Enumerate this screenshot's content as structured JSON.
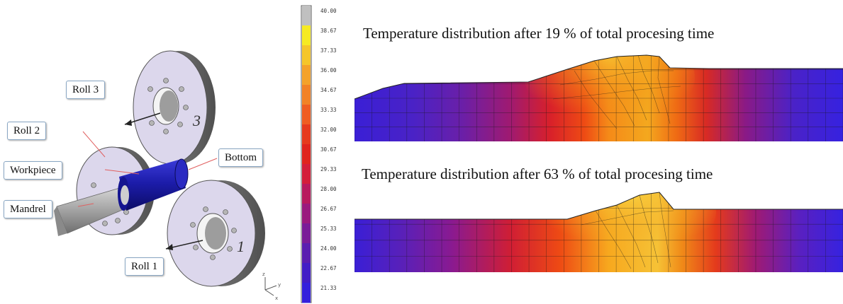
{
  "machine": {
    "labels": {
      "roll3": "Roll 3",
      "roll2": "Roll 2",
      "workpiece": "Workpiece",
      "bottom": "Bottom",
      "mandrel": "Mandrel",
      "roll1": "Roll 1"
    },
    "roll_numbers": {
      "roll3": "3",
      "roll1": "1"
    }
  },
  "colorbar": {
    "labels": [
      "40.00",
      "38.67",
      "37.33",
      "36.00",
      "34.67",
      "33.33",
      "32.00",
      "30.67",
      "29.33",
      "28.00",
      "26.67",
      "25.33",
      "24.00",
      "22.67",
      "21.33"
    ]
  },
  "plots": {
    "top_title": "Temperature distribution after 19 % of total procesing time",
    "bottom_title": "Temperature distribution after 63 % of total procesing time"
  }
}
